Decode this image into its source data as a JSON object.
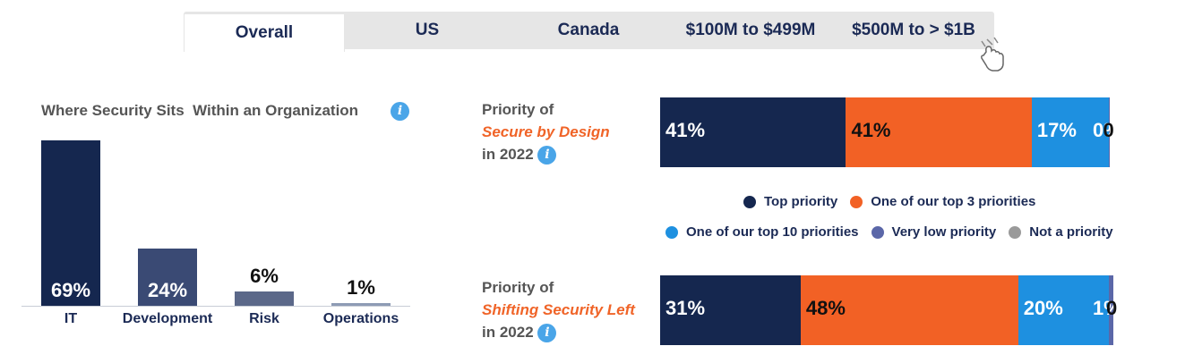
{
  "tabs": [
    "Overall",
    "US",
    "Canada",
    "$100M to $499M",
    "$500M to > $1B"
  ],
  "active_tab": "Overall",
  "colors": {
    "navy": "#15274f",
    "orange": "#f26125",
    "blue": "#1e90e0",
    "slate": "#5b67a8",
    "gray": "#9a9a9a"
  },
  "chart_data": [
    {
      "type": "bar",
      "title": "Where Security Sits  Within an Organization",
      "categories": [
        "IT",
        "Development",
        "Risk",
        "Operations"
      ],
      "values": [
        69,
        24,
        6,
        1
      ],
      "value_labels": [
        "69%",
        "24%",
        "6%",
        "1%"
      ],
      "colors": [
        "#15274f",
        "#3a4a74",
        "#5b6889",
        "#8d9bb4"
      ]
    },
    {
      "type": "bar",
      "orientation": "horizontal-stacked",
      "title_parts": [
        "Priority of",
        "Secure by Design",
        "in 2022"
      ],
      "series": [
        {
          "name": "Top priority",
          "value": 41,
          "label": "41%"
        },
        {
          "name": "One of our top 3 priorities",
          "value": 41,
          "label": "41%"
        },
        {
          "name": "One of our top 10 priorities",
          "value": 17,
          "label": "17%"
        },
        {
          "name": "Very low priority",
          "value": 0.3,
          "label": "0%"
        },
        {
          "name": "Not a priority",
          "value": 0,
          "label": "0"
        }
      ]
    },
    {
      "type": "bar",
      "orientation": "horizontal-stacked",
      "title_parts": [
        "Priority of",
        "Shifting Security Left",
        "in 2022"
      ],
      "series": [
        {
          "name": "Top priority",
          "value": 31,
          "label": "31%"
        },
        {
          "name": "One of our top 3 priorities",
          "value": 48,
          "label": "48%"
        },
        {
          "name": "One of our top 10 priorities",
          "value": 20,
          "label": "20%"
        },
        {
          "name": "Very low priority",
          "value": 1,
          "label": "1%"
        },
        {
          "name": "Not a priority",
          "value": 0,
          "label": "0"
        }
      ]
    }
  ],
  "legend": [
    {
      "label": "Top priority",
      "color": "#15274f"
    },
    {
      "label": "One of our top 3 priorities",
      "color": "#f26125"
    },
    {
      "label": "One of our top 10 priorities",
      "color": "#1e90e0"
    },
    {
      "label": "Very low priority",
      "color": "#5b67a8"
    },
    {
      "label": "Not a priority",
      "color": "#9a9a9a"
    }
  ],
  "info_glyph": "i",
  "icons": {
    "cursor": "pointer-hand-icon",
    "info": "info-icon"
  }
}
